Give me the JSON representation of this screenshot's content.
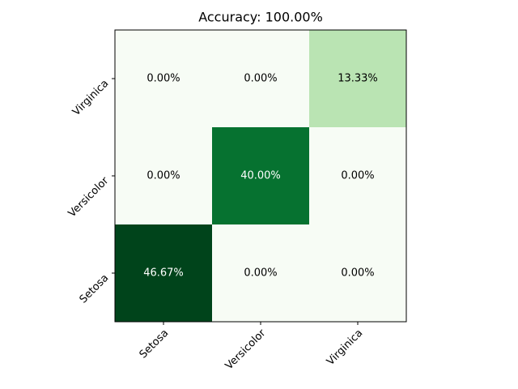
{
  "chart_data": {
    "type": "heatmap",
    "title": "Accuracy: 100.00%",
    "x_categories": [
      "Setosa",
      "Versicolor",
      "Virginica"
    ],
    "y_categories": [
      "Setosa",
      "Versicolor",
      "Virginica"
    ],
    "values": [
      [
        46.67,
        0,
        0
      ],
      [
        0,
        40,
        0
      ],
      [
        0,
        0,
        13.33
      ]
    ],
    "value_labels": [
      [
        "46.67%",
        "0.00%",
        "0.00%"
      ],
      [
        "0.00%",
        "40.00%",
        "0.00%"
      ],
      [
        "0.00%",
        "0.00%",
        "13.33%"
      ]
    ],
    "colors": [
      [
        "#00441b",
        "#f7fcf5",
        "#f7fcf5"
      ],
      [
        "#f7fcf5",
        "#067230",
        "#f7fcf5"
      ],
      [
        "#f7fcf5",
        "#f7fcf5",
        "#bae4b3"
      ]
    ]
  }
}
